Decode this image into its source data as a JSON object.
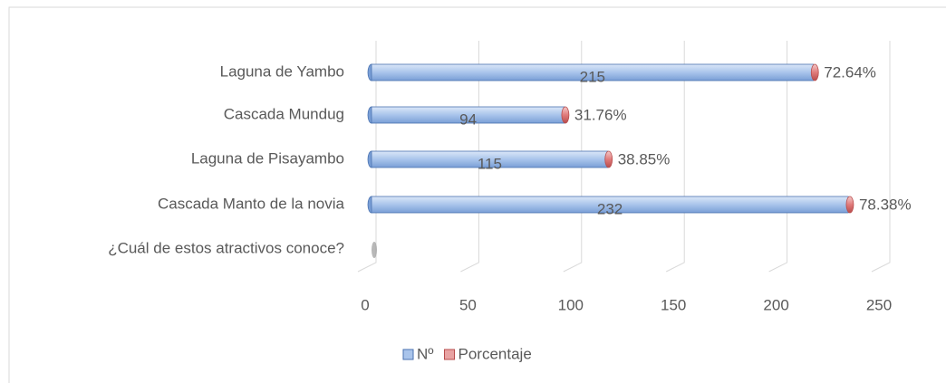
{
  "chart_data": {
    "type": "bar",
    "orientation": "horizontal",
    "stacked": true,
    "categories": [
      "Laguna de Yambo",
      "Cascada Mundug",
      "Laguna de Pisayambo",
      "Cascada Manto de la novia",
      "¿Cuál de estos atractivos conoce?"
    ],
    "series": [
      {
        "name": "Nº",
        "color": "#a9c4eb",
        "values": [
          215,
          94,
          115,
          232,
          null
        ]
      },
      {
        "name": "Porcentaje",
        "color": "#e8a3a3",
        "values": [
          0.7264,
          0.3176,
          0.3885,
          0.7838,
          null
        ],
        "value_labels": [
          "72.64%",
          "31.76%",
          "38.85%",
          "78.38%",
          null
        ]
      }
    ],
    "xlim": [
      0,
      250
    ],
    "xticks": [
      0,
      50,
      100,
      150,
      200,
      250
    ],
    "grid": true,
    "legend": "bottom"
  }
}
